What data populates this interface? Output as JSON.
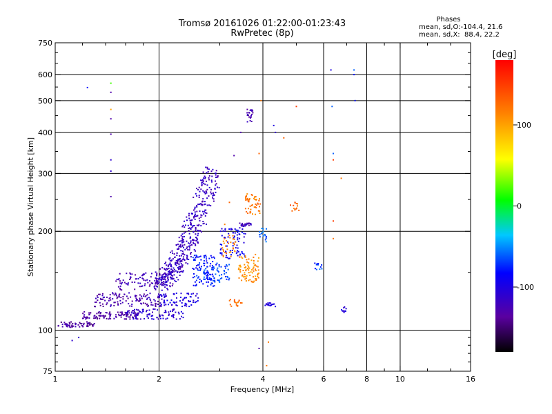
{
  "chart_data": {
    "type": "scatter",
    "title": "Tromsø 20161026 01:22:00-01:23:43",
    "subtitle": "RwPretec (8p)",
    "xlabel": "Frequency [MHz]",
    "ylabel": "Stationary phase Virtual Height [km]",
    "x_scale": "log",
    "y_scale": "log",
    "xlim": [
      1,
      16
    ],
    "ylim": [
      75,
      750
    ],
    "x_ticks": [
      1,
      2,
      4,
      6,
      8,
      10,
      16
    ],
    "x_tick_labels": [
      "1",
      "2",
      "4",
      "6",
      "8",
      "10",
      "16"
    ],
    "x_grid": [
      2,
      4,
      6,
      8,
      10
    ],
    "y_ticks": [
      75,
      100,
      200,
      300,
      400,
      500,
      600,
      750
    ],
    "y_tick_labels": [
      "75",
      "100",
      "200",
      "300",
      "400",
      "500",
      "600",
      "750"
    ],
    "y_grid": [
      100,
      200,
      300,
      400,
      500,
      600
    ],
    "grid": true,
    "stats": {
      "heading": "Phases",
      "line_o": "mean, sd,O:-104.4, 21.6",
      "line_x": "mean, sd,X:  88.4, 22.2"
    },
    "colorbar": {
      "label": "[deg]",
      "range": [
        -180,
        180
      ],
      "ticks": [
        100,
        0,
        -100
      ],
      "tick_labels": [
        "100",
        "0",
        "-100"
      ],
      "position": "right"
    },
    "clusters": [
      {
        "x": [
          1.02,
          1.3
        ],
        "y": [
          102,
          106
        ],
        "phase": -135,
        "count": 60,
        "kind": "band"
      },
      {
        "x": [
          1.2,
          1.75
        ],
        "y": [
          108,
          114
        ],
        "phase": -132,
        "count": 110,
        "kind": "band"
      },
      {
        "x": [
          1.3,
          2.1
        ],
        "y": [
          118,
          130
        ],
        "phase": -128,
        "count": 130,
        "kind": "band"
      },
      {
        "x": [
          1.5,
          2.1
        ],
        "y": [
          132,
          150
        ],
        "phase": -125,
        "count": 90,
        "kind": "band"
      },
      {
        "x": [
          1.6,
          2.35
        ],
        "y": [
          108,
          116
        ],
        "phase": -110,
        "count": 90,
        "kind": "band"
      },
      {
        "x": [
          2.0,
          2.6
        ],
        "y": [
          118,
          130
        ],
        "phase": -100,
        "count": 70,
        "kind": "band"
      },
      {
        "x": [
          2.0,
          2.85
        ],
        "y": [
          140,
          300
        ],
        "phase": -118,
        "count": 460,
        "kind": "diag"
      },
      {
        "x": [
          2.5,
          2.9
        ],
        "y": [
          135,
          170
        ],
        "phase": -80,
        "count": 90,
        "kind": "band"
      },
      {
        "x": [
          2.7,
          3.2
        ],
        "y": [
          140,
          160
        ],
        "phase": -70,
        "count": 70,
        "kind": "band"
      },
      {
        "x": [
          3.0,
          3.6
        ],
        "y": [
          165,
          205
        ],
        "phase": -95,
        "count": 80,
        "kind": "band"
      },
      {
        "x": [
          3.4,
          3.9
        ],
        "y": [
          140,
          170
        ],
        "phase": 110,
        "count": 80,
        "kind": "band"
      },
      {
        "x": [
          3.05,
          3.35
        ],
        "y": [
          165,
          195
        ],
        "phase": 115,
        "count": 30,
        "kind": "band"
      },
      {
        "x": [
          3.2,
          3.5
        ],
        "y": [
          118,
          124
        ],
        "phase": 125,
        "count": 18,
        "kind": "band"
      },
      {
        "x": [
          3.55,
          3.95
        ],
        "y": [
          225,
          260
        ],
        "phase": 120,
        "count": 50,
        "kind": "band"
      },
      {
        "x": [
          3.4,
          3.7
        ],
        "y": [
          207,
          212
        ],
        "phase": -118,
        "count": 25,
        "kind": "band"
      },
      {
        "x": [
          3.9,
          4.1
        ],
        "y": [
          185,
          205
        ],
        "phase": -60,
        "count": 18,
        "kind": "band"
      },
      {
        "x": [
          3.6,
          3.75
        ],
        "y": [
          430,
          470
        ],
        "phase": -128,
        "count": 22,
        "kind": "band"
      },
      {
        "x": [
          4.05,
          4.4
        ],
        "y": [
          118,
          121
        ],
        "phase": -100,
        "count": 18,
        "kind": "band"
      },
      {
        "x": [
          4.8,
          5.1
        ],
        "y": [
          230,
          245
        ],
        "phase": 130,
        "count": 14,
        "kind": "band"
      },
      {
        "x": [
          5.65,
          5.95
        ],
        "y": [
          153,
          160
        ],
        "phase": -70,
        "count": 12,
        "kind": "band"
      },
      {
        "x": [
          6.75,
          7.05
        ],
        "y": [
          113,
          118
        ],
        "phase": -100,
        "count": 10,
        "kind": "band"
      }
    ],
    "isolated_points": [
      {
        "x": 1.24,
        "y": 548,
        "phase": -80
      },
      {
        "x": 1.45,
        "y": 565,
        "phase": 20
      },
      {
        "x": 1.45,
        "y": 530,
        "phase": -130
      },
      {
        "x": 1.45,
        "y": 470,
        "phase": 100
      },
      {
        "x": 1.45,
        "y": 440,
        "phase": -130
      },
      {
        "x": 1.45,
        "y": 395,
        "phase": -130
      },
      {
        "x": 1.45,
        "y": 330,
        "phase": -110
      },
      {
        "x": 1.45,
        "y": 305,
        "phase": -110
      },
      {
        "x": 1.45,
        "y": 255,
        "phase": -130
      },
      {
        "x": 1.12,
        "y": 93,
        "phase": -110
      },
      {
        "x": 1.17,
        "y": 95,
        "phase": -110
      },
      {
        "x": 3.3,
        "y": 340,
        "phase": -130
      },
      {
        "x": 3.45,
        "y": 400,
        "phase": -130
      },
      {
        "x": 3.9,
        "y": 345,
        "phase": 130
      },
      {
        "x": 3.95,
        "y": 500,
        "phase": 120
      },
      {
        "x": 4.3,
        "y": 420,
        "phase": -100
      },
      {
        "x": 4.35,
        "y": 400,
        "phase": -110
      },
      {
        "x": 4.6,
        "y": 385,
        "phase": 130
      },
      {
        "x": 5.0,
        "y": 480,
        "phase": 150
      },
      {
        "x": 4.15,
        "y": 92,
        "phase": 120
      },
      {
        "x": 3.9,
        "y": 88,
        "phase": -130
      },
      {
        "x": 4.1,
        "y": 78,
        "phase": 120
      },
      {
        "x": 6.3,
        "y": 620,
        "phase": -100
      },
      {
        "x": 6.35,
        "y": 480,
        "phase": -60
      },
      {
        "x": 6.4,
        "y": 345,
        "phase": -60
      },
      {
        "x": 6.4,
        "y": 330,
        "phase": 150
      },
      {
        "x": 6.4,
        "y": 215,
        "phase": 150
      },
      {
        "x": 6.4,
        "y": 190,
        "phase": 120
      },
      {
        "x": 6.75,
        "y": 290,
        "phase": 120
      },
      {
        "x": 7.35,
        "y": 620,
        "phase": -60
      },
      {
        "x": 7.35,
        "y": 600,
        "phase": -80
      },
      {
        "x": 7.4,
        "y": 500,
        "phase": -80
      },
      {
        "x": 3.2,
        "y": 245,
        "phase": 130
      },
      {
        "x": 3.1,
        "y": 210,
        "phase": 115
      }
    ]
  }
}
